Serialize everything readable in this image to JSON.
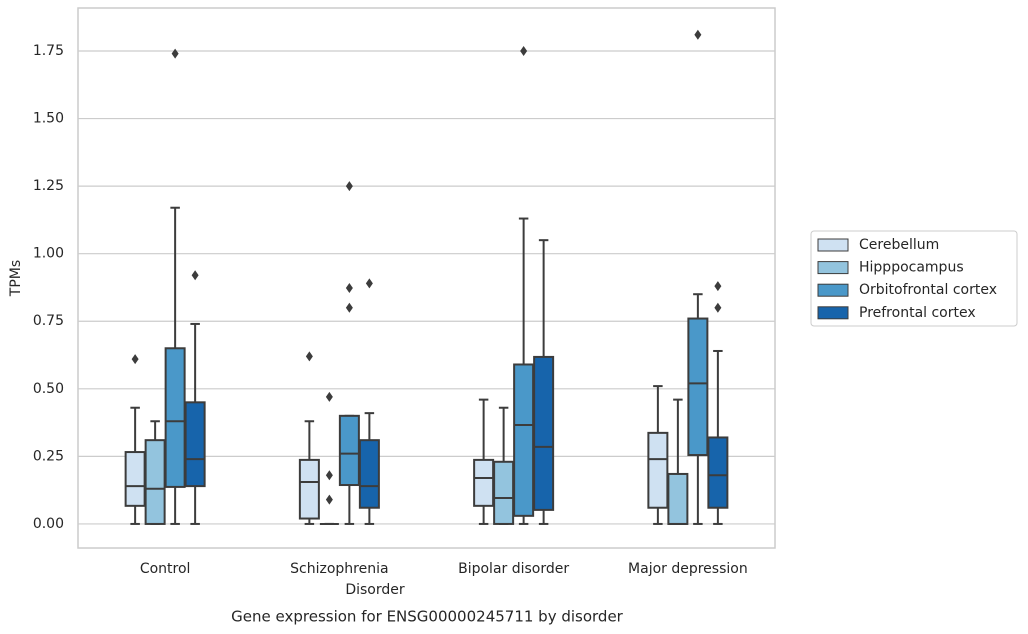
{
  "chart_data": {
    "type": "box",
    "title": "Gene expression for ENSG00000245711 by disorder",
    "xlabel": "Disorder",
    "ylabel": "TPMs",
    "categories": [
      "Control",
      "Schizophrenia",
      "Bipolar disorder",
      "Major depression"
    ],
    "ylim": [
      -0.089,
      1.909
    ],
    "yticks": [
      {
        "value": 0,
        "label": "0.00"
      },
      {
        "value": 0.25,
        "label": "0.25"
      },
      {
        "value": 0.5,
        "label": "0.50"
      },
      {
        "value": 0.75,
        "label": "0.75"
      },
      {
        "value": 1,
        "label": "1.00"
      },
      {
        "value": 1.25,
        "label": "1.25"
      },
      {
        "value": 1.5,
        "label": "1.50"
      },
      {
        "value": 1.75,
        "label": "1.75"
      }
    ],
    "grid": true,
    "legend": "outside right",
    "series": [
      {
        "name": "Cerebellum",
        "color": "#cfe1f2",
        "boxes": [
          {
            "whislo": 0,
            "q1": 0.067,
            "med": 0.14,
            "q3": 0.266,
            "whishi": 0.43,
            "fliers": [
              0.61
            ]
          },
          {
            "whislo": 0,
            "q1": 0.02,
            "med": 0.155,
            "q3": 0.237,
            "whishi": 0.38,
            "fliers": [
              0.62
            ]
          },
          {
            "whislo": 0,
            "q1": 0.067,
            "med": 0.17,
            "q3": 0.237,
            "whishi": 0.46,
            "fliers": []
          },
          {
            "whislo": 0,
            "q1": 0.06,
            "med": 0.24,
            "q3": 0.337,
            "whishi": 0.51,
            "fliers": []
          }
        ]
      },
      {
        "name": "Hipppocampus",
        "color": "#93c4de",
        "boxes": [
          {
            "whislo": 0,
            "q1": 0,
            "med": 0.13,
            "q3": 0.31,
            "whishi": 0.38,
            "fliers": []
          },
          {
            "whislo": 0,
            "q1": 0,
            "med": 0,
            "q3": 0,
            "whishi": 0,
            "fliers": [
              0.47,
              0.18,
              0.09
            ]
          },
          {
            "whislo": 0,
            "q1": 0,
            "med": 0.096,
            "q3": 0.23,
            "whishi": 0.43,
            "fliers": []
          },
          {
            "whislo": 0,
            "q1": 0,
            "med": 0,
            "q3": 0.185,
            "whishi": 0.46,
            "fliers": []
          }
        ]
      },
      {
        "name": "Orbitofrontal cortex",
        "color": "#4a98c9",
        "boxes": [
          {
            "whislo": 0,
            "q1": 0.137,
            "med": 0.38,
            "q3": 0.65,
            "whishi": 1.17,
            "fliers": [
              1.74
            ]
          },
          {
            "whislo": 0,
            "q1": 0.144,
            "med": 0.26,
            "q3": 0.4,
            "whishi": 0.4,
            "fliers": [
              1.25,
              0.873,
              0.8
            ]
          },
          {
            "whislo": 0,
            "q1": 0.03,
            "med": 0.366,
            "q3": 0.59,
            "whishi": 1.13,
            "fliers": [
              1.75
            ]
          },
          {
            "whislo": 0,
            "q1": 0.255,
            "med": 0.52,
            "q3": 0.76,
            "whishi": 0.85,
            "fliers": [
              1.81
            ]
          }
        ]
      },
      {
        "name": "Prefrontal cortex",
        "color": "#1764ab",
        "boxes": [
          {
            "whislo": 0,
            "q1": 0.14,
            "med": 0.24,
            "q3": 0.45,
            "whishi": 0.74,
            "fliers": [
              0.92
            ]
          },
          {
            "whislo": 0,
            "q1": 0.06,
            "med": 0.14,
            "q3": 0.31,
            "whishi": 0.41,
            "fliers": [
              0.89
            ]
          },
          {
            "whislo": 0,
            "q1": 0.052,
            "med": 0.285,
            "q3": 0.618,
            "whishi": 1.05,
            "fliers": []
          },
          {
            "whislo": 0,
            "q1": 0.06,
            "med": 0.18,
            "q3": 0.32,
            "whishi": 0.64,
            "fliers": [
              0.88,
              0.8
            ]
          }
        ]
      }
    ]
  }
}
